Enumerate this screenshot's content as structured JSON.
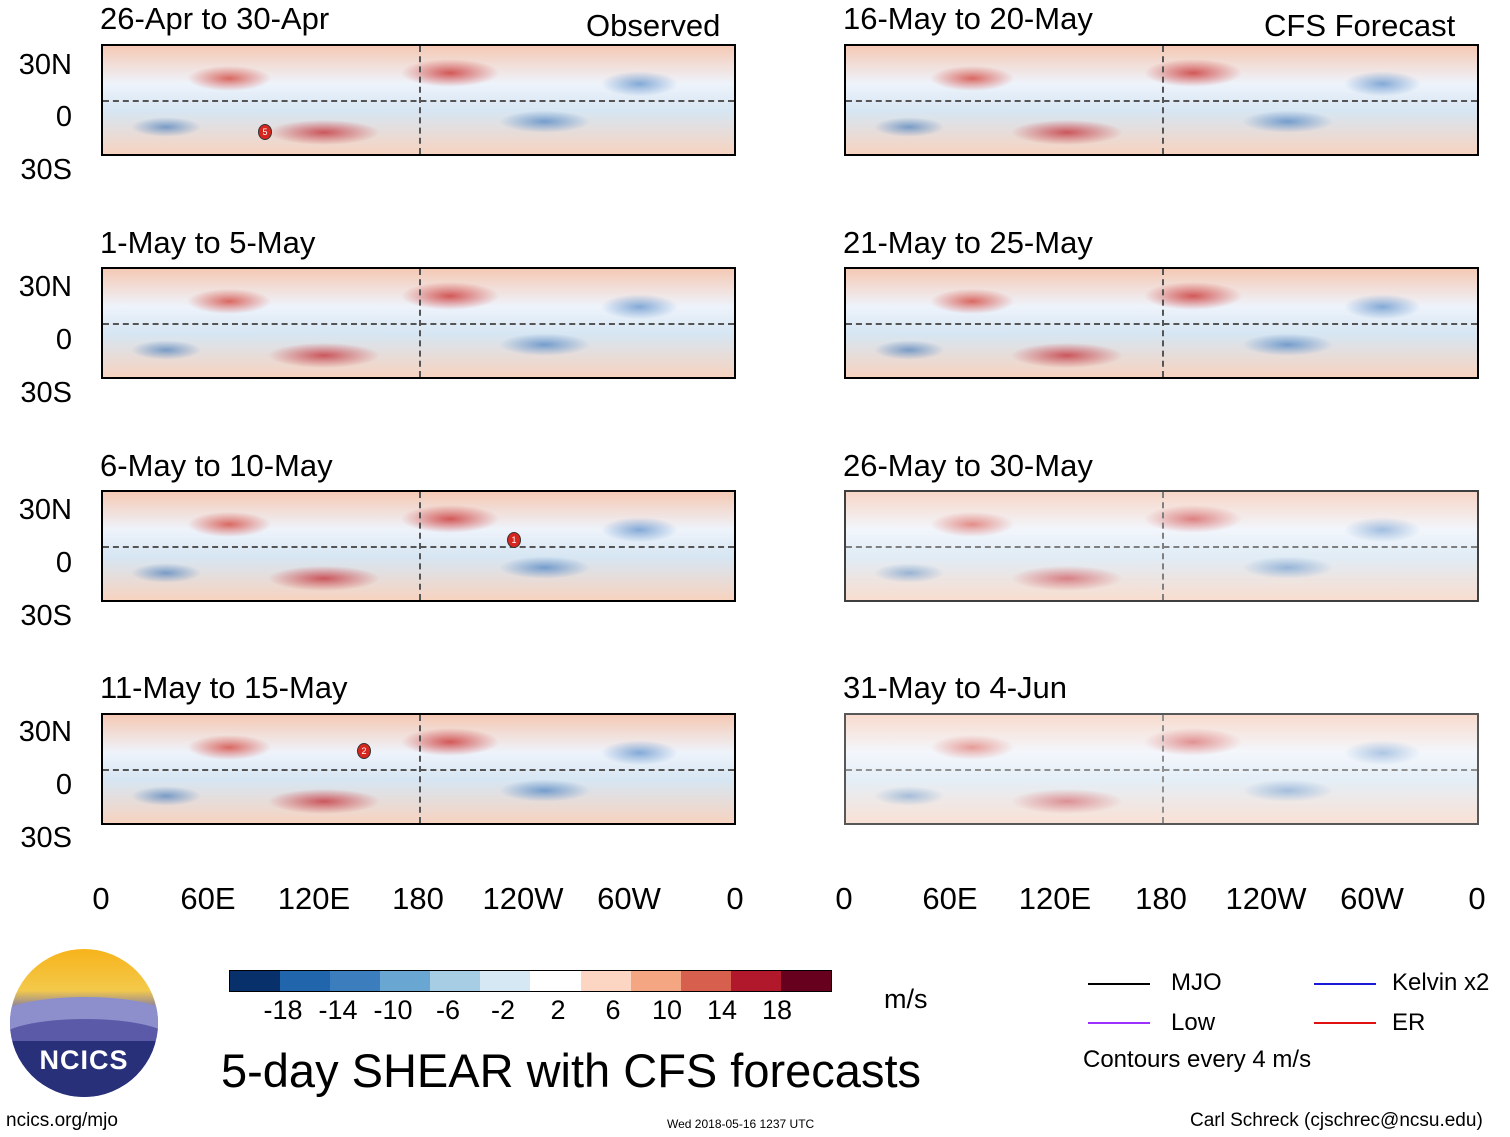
{
  "chart_data": {
    "type": "heatmap",
    "title": "5-day SHEAR with CFS forecasts",
    "units": "m/s",
    "columns": [
      {
        "label": "Observed",
        "panels": [
          "26-Apr to 30-Apr",
          "1-May to 5-May",
          "6-May to 10-May",
          "11-May to 15-May"
        ]
      },
      {
        "label": "CFS Forecast",
        "panels": [
          "16-May to 20-May",
          "21-May to 25-May",
          "26-May to 30-May",
          "31-May to 4-Jun"
        ]
      }
    ],
    "y_ticks": [
      "30N",
      "0",
      "30S"
    ],
    "x_ticks": [
      "0",
      "60E",
      "120E",
      "180",
      "120W",
      "60W",
      "0"
    ],
    "colorbar": {
      "ticks": [
        "-18",
        "-14",
        "-10",
        "-6",
        "-2",
        "2",
        "6",
        "10",
        "14",
        "18"
      ],
      "colors": [
        "#08306b",
        "#2166ac",
        "#3b7dbd",
        "#6aa6d2",
        "#a6cde4",
        "#d6e8f3",
        "#ffffff",
        "#fcd6c2",
        "#f4a582",
        "#d6604d",
        "#b2182b",
        "#67001f"
      ]
    },
    "legend": [
      {
        "label": "MJO",
        "color": "#000000"
      },
      {
        "label": "Kelvin x2",
        "color": "#1a1ad6"
      },
      {
        "label": "Low",
        "color": "#9b30ff"
      },
      {
        "label": "ER",
        "color": "#e01010"
      }
    ],
    "contour_note": "Contours every 4 m/s",
    "storm_markers": [
      {
        "panel": 0,
        "label": "5"
      },
      {
        "panel": 2,
        "label": "1"
      },
      {
        "panel": 3,
        "label": "2"
      }
    ]
  },
  "footer": {
    "url": "ncics.org/mjo",
    "timestamp": "Wed 2018-05-16 1237 UTC",
    "credit": "Carl Schreck (cjschrec@ncsu.edu)"
  },
  "logo": {
    "text": "NCICS"
  }
}
